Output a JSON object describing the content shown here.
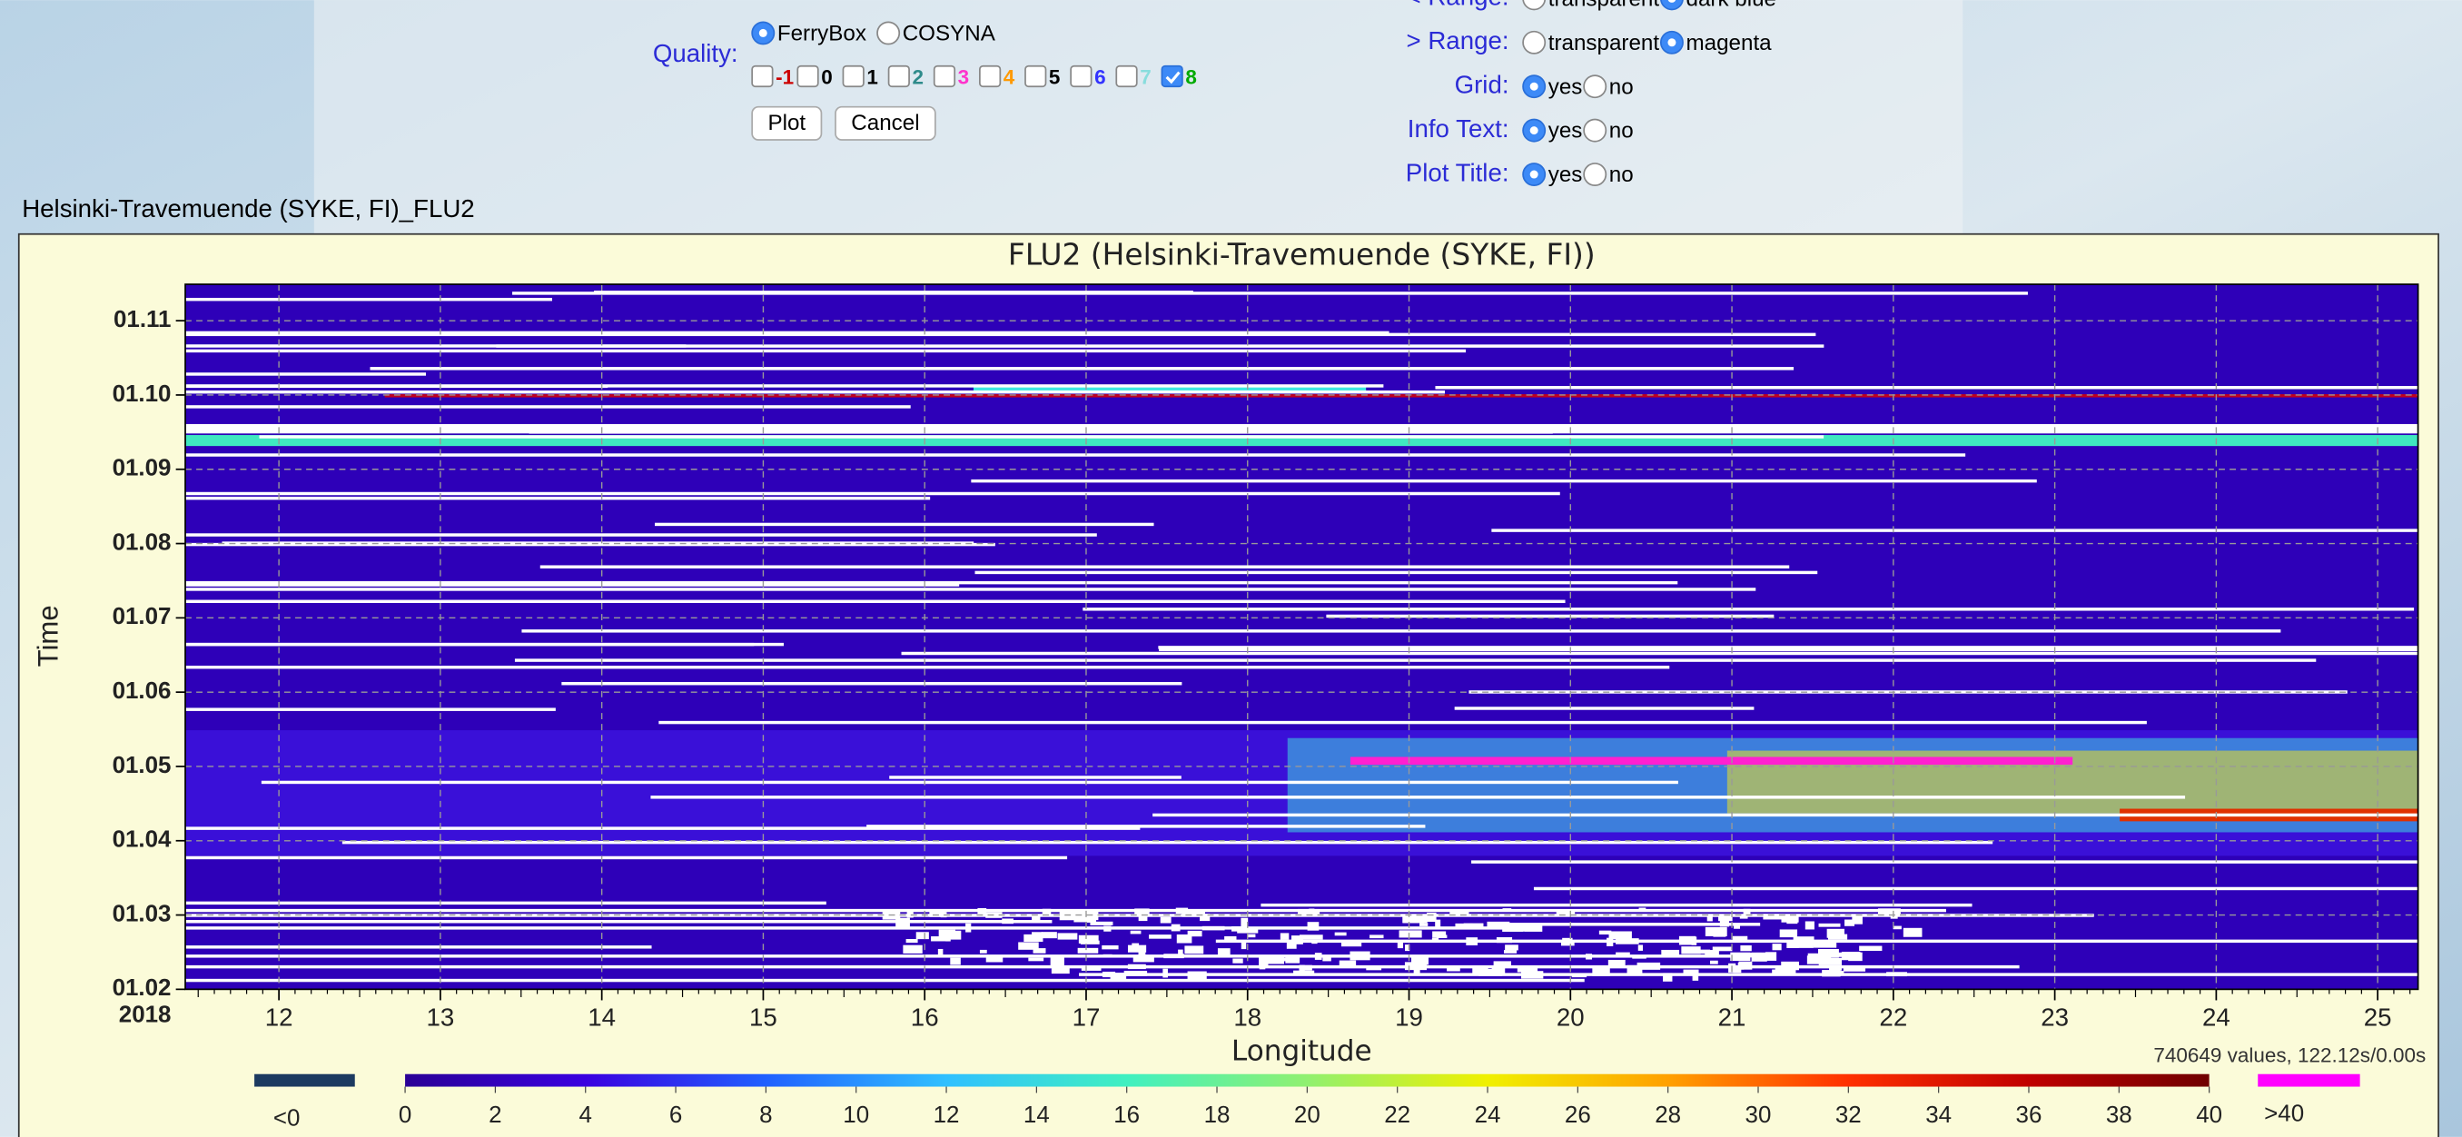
{
  "form": {
    "quality": {
      "label": "Quality:",
      "options": [
        "FerryBox",
        "COSYNA"
      ],
      "selected": 0,
      "flags": [
        "-1",
        "0",
        "1",
        "2",
        "3",
        "4",
        "5",
        "6",
        "7",
        "8"
      ],
      "flag_colors": [
        "#cc0000",
        "#000000",
        "#000000",
        "#2e8b8b",
        "#ff33cc",
        "#ff9900",
        "#000000",
        "#3333ff",
        "#88dddd",
        "#00aa00"
      ],
      "checked": [
        false,
        false,
        false,
        false,
        false,
        false,
        false,
        false,
        false,
        true
      ]
    },
    "buttons": [
      "Plot",
      "Cancel"
    ],
    "settings": [
      {
        "label": "< Range:",
        "options": [
          "transparent",
          "dark blue"
        ],
        "selected": 1
      },
      {
        "label": "> Range:",
        "options": [
          "transparent",
          "magenta"
        ],
        "selected": 1
      },
      {
        "label": "Grid:",
        "options": [
          "yes",
          "no"
        ],
        "selected": 0
      },
      {
        "label": "Info Text:",
        "options": [
          "yes",
          "no"
        ],
        "selected": 0
      },
      {
        "label": "Plot Title:",
        "options": [
          "yes",
          "no"
        ],
        "selected": 0
      }
    ]
  },
  "plot_heading": "Helsinki-Travemuende (SYKE, FI)_FLU2",
  "chart_data": {
    "type": "heatmap",
    "title": "FLU2 (Helsinki-Travemuende (SYKE, FI))",
    "x_label": "Longitude",
    "y_label": "Time",
    "year_label": "2018",
    "info_text": "740649 values, 122.12s/0.00s",
    "xlim": [
      11.42,
      25.25
    ],
    "xticks": [
      12,
      13,
      14,
      15,
      16,
      17,
      18,
      19,
      20,
      21,
      22,
      23,
      24,
      25
    ],
    "ylim": [
      2,
      11.49
    ],
    "yticks": [
      {
        "value": 2,
        "label": "01.02"
      },
      {
        "value": 3,
        "label": "01.03"
      },
      {
        "value": 4,
        "label": "01.04"
      },
      {
        "value": 5,
        "label": "01.05"
      },
      {
        "value": 6,
        "label": "01.06"
      },
      {
        "value": 7,
        "label": "01.07"
      },
      {
        "value": 8,
        "label": "01.08"
      },
      {
        "value": 9,
        "label": "01.09"
      },
      {
        "value": 10,
        "label": "01.10"
      },
      {
        "value": 11,
        "label": "01.11"
      }
    ],
    "grid": true,
    "colorbar": {
      "lim": [
        0,
        40
      ],
      "ticks": [
        0,
        2,
        4,
        6,
        8,
        10,
        12,
        14,
        16,
        18,
        20,
        22,
        24,
        26,
        28,
        30,
        32,
        34,
        36,
        38,
        40
      ],
      "colors": [
        "#2a0096",
        "#3a00e0",
        "#2060ff",
        "#30c0ff",
        "#40f0c0",
        "#90f070",
        "#f0f000",
        "#ffa000",
        "#ff3000",
        "#c00000",
        "#700000"
      ],
      "under_label": "<0",
      "under_color": "#1c3a60",
      "over_label": ">40",
      "over_color": "#ff00ff"
    }
  }
}
